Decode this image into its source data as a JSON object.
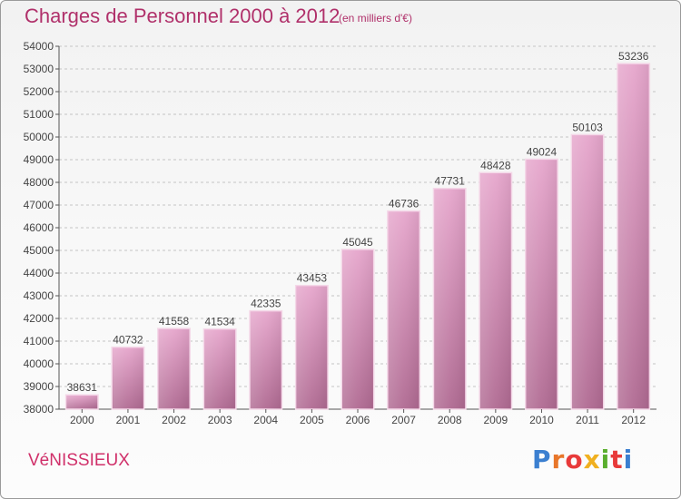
{
  "title": "Charges de Personnel 2000 à 2012",
  "subtitle": "(en milliers d'€)",
  "place": "VéNISSIEUX",
  "logo": {
    "p1": "Pro",
    "p2": "x",
    "p3": "iti"
  },
  "chart_data": {
    "type": "bar",
    "title": "Charges de Personnel 2000 à 2012",
    "ylabel": "(en milliers d'€)",
    "xlabel": "",
    "categories": [
      "2000",
      "2001",
      "2002",
      "2003",
      "2004",
      "2005",
      "2006",
      "2007",
      "2008",
      "2009",
      "2010",
      "2011",
      "2012"
    ],
    "values": [
      38631,
      40732,
      41558,
      41534,
      42335,
      43453,
      45045,
      46736,
      47731,
      48428,
      49024,
      50103,
      53236
    ],
    "ylim": [
      38000,
      54000
    ],
    "yticks": [
      38000,
      39000,
      40000,
      41000,
      42000,
      43000,
      44000,
      45000,
      46000,
      47000,
      48000,
      49000,
      50000,
      51000,
      52000,
      53000,
      54000
    ],
    "grid": true,
    "bar_color": "#d986b4"
  }
}
